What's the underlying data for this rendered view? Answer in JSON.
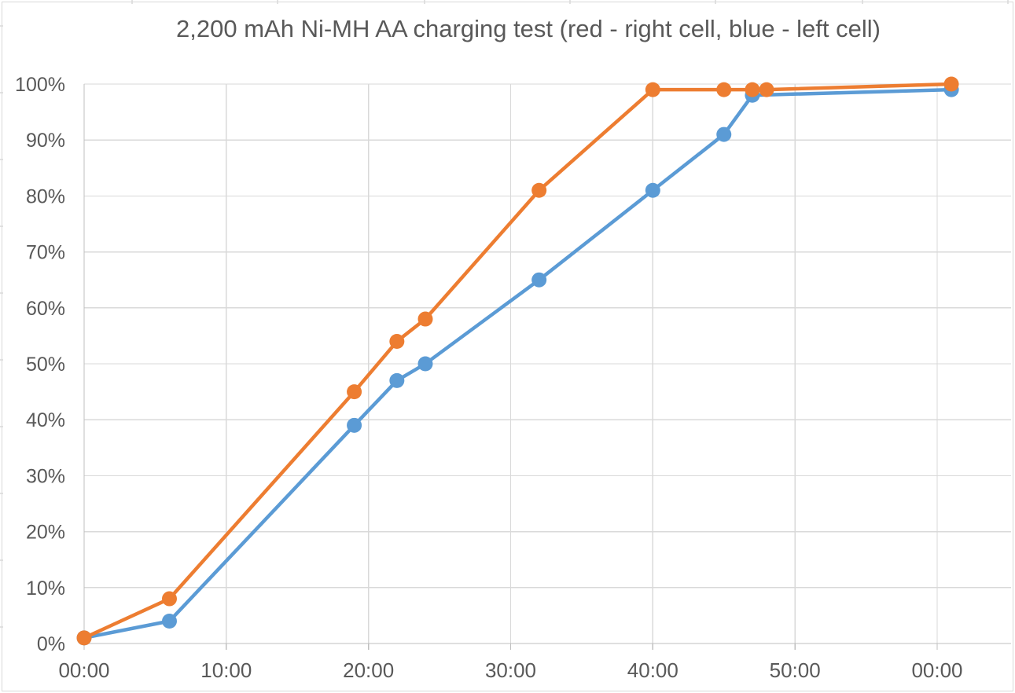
{
  "chart_data": {
    "type": "line",
    "title": "2,200 mAh Ni-MH AA charging test (red - right cell, blue - left cell)",
    "xlabel": "",
    "ylabel": "",
    "x_tick_labels": [
      "00:00",
      "10:00",
      "20:00",
      "30:00",
      "40:00",
      "50:00",
      "00:00"
    ],
    "x_tick_minutes": [
      0,
      10,
      20,
      30,
      40,
      50,
      60
    ],
    "y_tick_labels": [
      "0%",
      "10%",
      "20%",
      "30%",
      "40%",
      "50%",
      "60%",
      "70%",
      "80%",
      "90%",
      "100%"
    ],
    "y_tick_values": [
      0,
      10,
      20,
      30,
      40,
      50,
      60,
      70,
      80,
      90,
      100
    ],
    "x_range_minutes": [
      0,
      65.2
    ],
    "y_range_percent": [
      0,
      100
    ],
    "grid": true,
    "legend_position": "none",
    "series": [
      {
        "key": "left-cell",
        "name": "blue - left cell",
        "color": "#5B9BD5",
        "x_minutes": [
          0,
          6,
          19,
          22,
          24,
          32,
          40,
          45,
          47,
          61
        ],
        "values_percent": [
          1,
          4,
          39,
          47,
          50,
          65,
          81,
          91,
          98,
          99
        ]
      },
      {
        "key": "right-cell",
        "name": "red - right cell",
        "color": "#ED7D31",
        "x_minutes": [
          0,
          6,
          19,
          22,
          24,
          32,
          40,
          45,
          47,
          48,
          61
        ],
        "values_percent": [
          1,
          8,
          45,
          54,
          58,
          81,
          99,
          99,
          99,
          99,
          100
        ]
      }
    ]
  },
  "styles": {
    "background": "#FFFFFF",
    "text_color": "#595959",
    "grid_color": "#D9D9D9",
    "axis_color": "#BFBFBF",
    "frame_color": "#D9D9D9",
    "edge_stub_color": "#D9D9D9"
  }
}
